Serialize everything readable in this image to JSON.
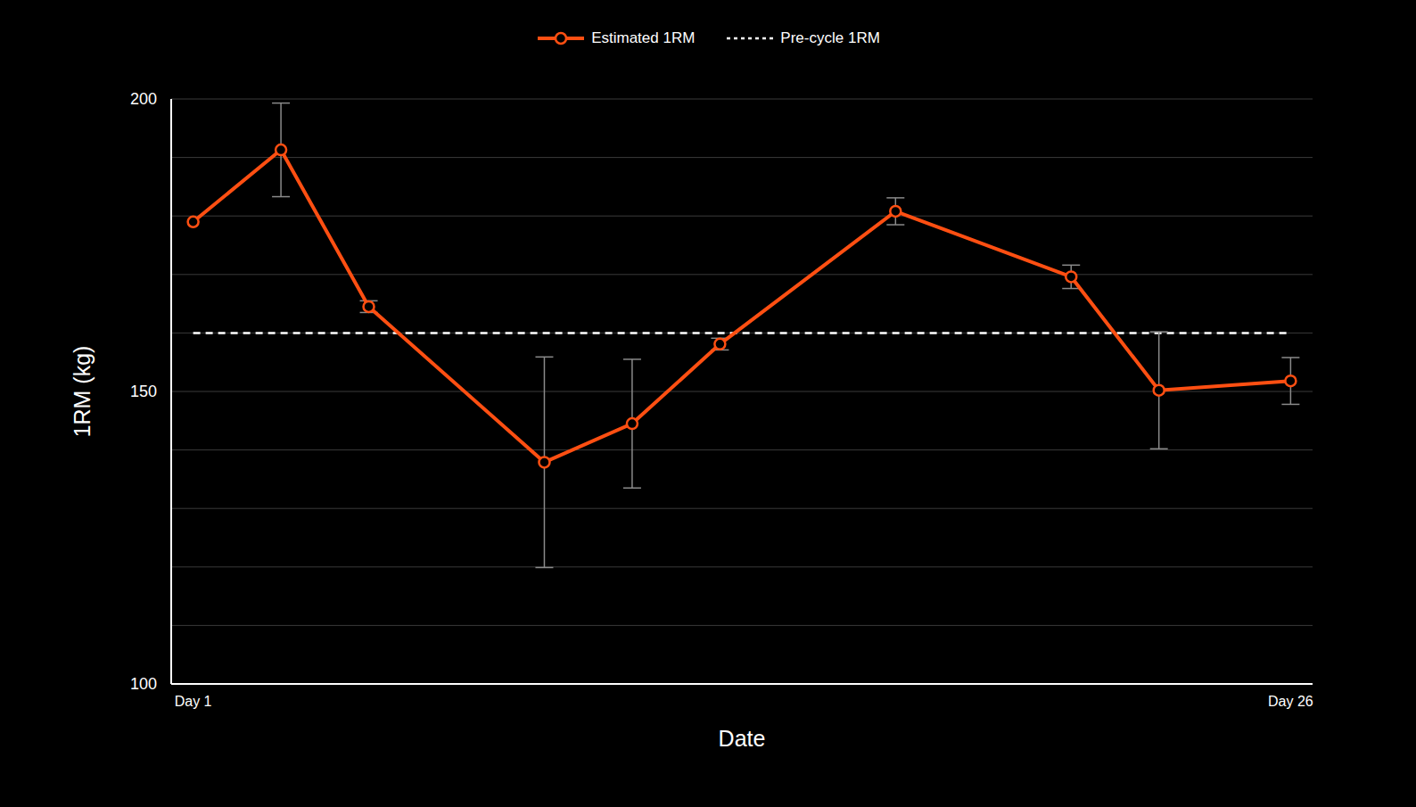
{
  "chart_data": {
    "type": "line",
    "x_label": "Date",
    "y_label": "1RM (kg)",
    "x": [
      1,
      3,
      5,
      9,
      11,
      13,
      17,
      21,
      23,
      26
    ],
    "xlim": [
      0.5,
      26.5
    ],
    "xticks": [
      {
        "value": 1,
        "label": "Day 1"
      },
      {
        "value": 26,
        "label": "Day 26"
      }
    ],
    "ylim": [
      100,
      200
    ],
    "yticks": [
      100,
      {
        "value": 110,
        "label": null
      },
      {
        "value": 120,
        "label": null
      },
      {
        "value": 130,
        "label": null
      },
      {
        "value": 140,
        "label": null
      },
      150,
      {
        "value": 160,
        "label": null
      },
      {
        "value": 170,
        "label": null
      },
      {
        "value": 180,
        "label": null
      },
      {
        "value": 190,
        "label": null
      },
      200
    ],
    "grid": true,
    "legend": "top",
    "series": [
      {
        "name": "Estimated 1RM",
        "color": "#ff4f12",
        "marker": "circle",
        "line_style": "solid",
        "values": [
          179,
          191.3,
          164.5,
          137.9,
          144.5,
          158.1,
          180.8,
          169.6,
          150.2,
          151.8
        ],
        "errors": [
          0,
          8,
          1,
          18,
          11,
          1,
          2.3,
          2,
          10,
          4
        ]
      }
    ],
    "reference_line": {
      "name": "Pre-cycle 1RM",
      "value": 160,
      "color": "#ffffff",
      "line_style": "dashed",
      "x": [
        1,
        26
      ]
    }
  }
}
